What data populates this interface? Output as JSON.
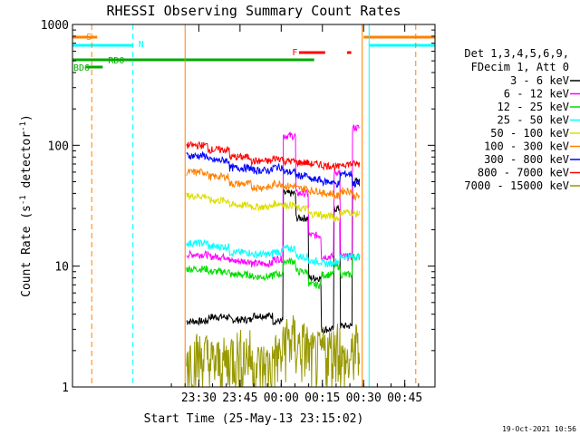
{
  "chart_data": {
    "type": "line",
    "title": "RHESSI Observing Summary Count Rates",
    "xlabel": "Start Time (25-May-13 23:15:02)",
    "ylabel_main": "Count Rate (s",
    "ylabel_sup1": "-1",
    "ylabel_mid": " detector",
    "ylabel_sup2": "-1",
    "ylabel_end": ")",
    "y_scale": "log",
    "ylim": [
      1,
      1000
    ],
    "xlim_minutes": [
      -16,
      56
    ],
    "x_ticks": [
      {
        "m": 30,
        "label": "23:30"
      },
      {
        "m": 45,
        "label": "23:45"
      },
      {
        "m": 60,
        "label": "00:00"
      },
      {
        "m": 75,
        "label": "00:15"
      },
      {
        "m": 90,
        "label": "00:30"
      },
      {
        "m": 105,
        "label": "00:45"
      }
    ],
    "y_ticks": [
      {
        "v": 1,
        "label": "1"
      },
      {
        "v": 10,
        "label": "10"
      },
      {
        "v": 100,
        "label": "100"
      },
      {
        "v": 1000,
        "label": "1000"
      }
    ],
    "legend_header1": "Det 1,3,4,5,6,9,",
    "legend_header2": "FDecim 1, Att 0",
    "series": [
      {
        "name": "3 - 6 keV",
        "color": "#000000",
        "base": [
          3.5,
          3.8,
          3.6,
          3.9,
          3.5,
          3.6,
          3.4,
          3.2
        ],
        "flare": [
          40,
          25,
          8,
          3,
          30,
          50
        ]
      },
      {
        "name": "6 - 12 keV",
        "color": "#ff00ff",
        "base": [
          12.5,
          12,
          11,
          10.5,
          11.5,
          13,
          12.5,
          12
        ],
        "flare": [
          120,
          40,
          18,
          12,
          60,
          140
        ]
      },
      {
        "name": "12 - 25 keV",
        "color": "#00dd00",
        "base": [
          9.5,
          9,
          8.5,
          8.2,
          8.6,
          9.2,
          8.8,
          8.5
        ],
        "flare": [
          11,
          9,
          7,
          8.5,
          10,
          12
        ]
      },
      {
        "name": "25 - 50 keV",
        "color": "#00ffff",
        "base": [
          15.5,
          14.5,
          13,
          12.5,
          13.2,
          15,
          13.5,
          12
        ],
        "flare": [
          14,
          12,
          11,
          10.5,
          11,
          12
        ]
      },
      {
        "name": "50 - 100 keV",
        "color": "#dddd00",
        "base": [
          38,
          35,
          32,
          31,
          33,
          36,
          30,
          28
        ],
        "flare": [
          32,
          30,
          27,
          26,
          25,
          27
        ]
      },
      {
        "name": "100 - 300 keV",
        "color": "#ff8000",
        "base": [
          60,
          55,
          48,
          45,
          48,
          55,
          48,
          42
        ],
        "flare": [
          46,
          44,
          42,
          40,
          38,
          38
        ]
      },
      {
        "name": "300 - 800 keV",
        "color": "#0000ff",
        "base": [
          82,
          75,
          65,
          62,
          66,
          76,
          66,
          58
        ],
        "flare": [
          60,
          56,
          52,
          50,
          48,
          48
        ]
      },
      {
        "name": "800 - 7000 keV",
        "color": "#ff0000",
        "base": [
          100,
          92,
          80,
          74,
          78,
          92,
          80,
          70
        ],
        "flare": [
          74,
          72,
          70,
          68,
          66,
          70
        ]
      },
      {
        "name": "7000 - 15000 keV",
        "color": "#999900",
        "base": [
          1.8,
          1.6,
          1.9,
          1.5,
          1.8,
          2.0,
          1.7,
          1.6
        ],
        "flare": [
          2.5,
          2.2,
          1.8,
          2.0,
          2.4,
          2.1
        ]
      }
    ],
    "flags": [
      {
        "label": "S",
        "color": "#ff8000",
        "segments": [
          [
            -16,
            -7
          ],
          [
            90,
            56
          ]
        ]
      },
      {
        "label": "N",
        "color": "#00ffff",
        "segments": [
          [
            -16,
            6
          ],
          [
            92,
            56
          ]
        ]
      },
      {
        "label": "F",
        "color": "#ff0000",
        "segments": [
          [
            66.5,
            76
          ],
          [
            84,
            85.5
          ]
        ]
      },
      {
        "label": "RD0",
        "color": "#00aa00",
        "segments": [
          [
            -16,
            69
          ],
          [
            72,
            56
          ]
        ]
      },
      {
        "label": "BD6",
        "color": "#00aa00",
        "segments": [
          [
            -11,
            -5
          ]
        ]
      }
    ],
    "night_markers": [
      {
        "m": -16,
        "color": "#00ffff",
        "style": "solid"
      },
      {
        "m": -9,
        "color": "#ff8000",
        "style": "dashed"
      },
      {
        "m": 25,
        "color": "#ff8000",
        "style": "solid"
      },
      {
        "m": 6,
        "color": "#00ffff",
        "style": "dashed"
      },
      {
        "m": 89.5,
        "color": "#ff8000",
        "style": "solid"
      },
      {
        "m": 92,
        "color": "#00ffff",
        "style": "solid"
      },
      {
        "m": 109,
        "color": "#ff8000",
        "style": "dashed"
      }
    ],
    "timestamp": "19-Oct-2021 10:56"
  }
}
